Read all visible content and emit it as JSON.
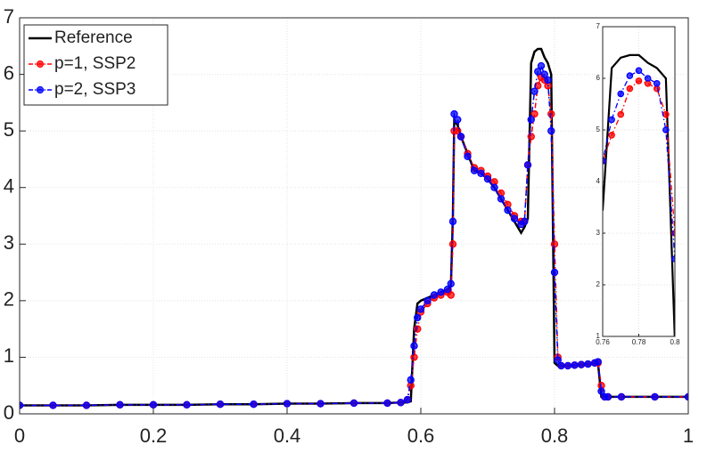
{
  "chart_data": {
    "type": "line",
    "x": [
      0,
      0.05,
      0.1,
      0.15,
      0.2,
      0.25,
      0.3,
      0.35,
      0.4,
      0.45,
      0.5,
      0.55,
      0.57,
      0.58,
      0.585,
      0.59,
      0.595,
      0.6,
      0.61,
      0.62,
      0.63,
      0.64,
      0.645,
      0.648,
      0.65,
      0.655,
      0.66,
      0.67,
      0.68,
      0.69,
      0.7,
      0.71,
      0.72,
      0.73,
      0.74,
      0.75,
      0.755,
      0.76,
      0.765,
      0.77,
      0.775,
      0.78,
      0.785,
      0.79,
      0.795,
      0.8,
      0.805,
      0.81,
      0.82,
      0.83,
      0.84,
      0.85,
      0.86,
      0.865,
      0.87,
      0.875,
      0.88,
      0.9,
      0.95,
      1.0
    ],
    "series": [
      {
        "name": "Reference",
        "color": "#000000",
        "marker": false,
        "values": [
          0.15,
          0.15,
          0.15,
          0.16,
          0.16,
          0.16,
          0.17,
          0.17,
          0.18,
          0.18,
          0.19,
          0.19,
          0.2,
          0.2,
          0.22,
          1.5,
          1.95,
          2.0,
          2.05,
          2.1,
          2.15,
          2.2,
          2.25,
          3.5,
          5.2,
          5.1,
          4.9,
          4.6,
          4.3,
          4.25,
          4.15,
          4.0,
          3.8,
          3.6,
          3.4,
          3.2,
          3.3,
          3.45,
          6.2,
          6.4,
          6.45,
          6.45,
          6.3,
          6.2,
          6.0,
          0.9,
          0.85,
          0.85,
          0.85,
          0.86,
          0.87,
          0.88,
          0.9,
          0.9,
          0.3,
          0.3,
          0.3,
          0.3,
          0.3,
          0.3
        ]
      },
      {
        "name": "p=1, SSP2",
        "color": "#ff0000",
        "marker": true,
        "values": [
          0.15,
          0.15,
          0.15,
          0.16,
          0.16,
          0.16,
          0.17,
          0.17,
          0.18,
          0.18,
          0.19,
          0.19,
          0.2,
          0.25,
          0.5,
          1.0,
          1.5,
          1.8,
          1.95,
          2.05,
          2.1,
          2.15,
          2.1,
          3.0,
          5.0,
          5.0,
          4.9,
          4.6,
          4.35,
          4.3,
          4.2,
          4.1,
          3.9,
          3.7,
          3.5,
          3.4,
          3.4,
          4.4,
          4.9,
          5.3,
          5.8,
          5.95,
          5.9,
          5.8,
          5.3,
          3.0,
          1.0,
          0.85,
          0.85,
          0.86,
          0.87,
          0.88,
          0.9,
          0.9,
          0.5,
          0.3,
          0.3,
          0.3,
          0.3,
          0.3
        ]
      },
      {
        "name": "p=2, SSP3",
        "color": "#0000ff",
        "marker": true,
        "values": [
          0.15,
          0.15,
          0.15,
          0.16,
          0.16,
          0.16,
          0.17,
          0.17,
          0.18,
          0.18,
          0.19,
          0.19,
          0.2,
          0.25,
          0.6,
          1.2,
          1.7,
          1.85,
          2.0,
          2.1,
          2.15,
          2.2,
          2.3,
          3.4,
          5.3,
          5.2,
          4.9,
          4.55,
          4.3,
          4.25,
          4.15,
          4.0,
          3.8,
          3.6,
          3.45,
          3.35,
          3.4,
          4.4,
          5.2,
          5.7,
          6.05,
          6.15,
          6.0,
          5.9,
          5.0,
          2.5,
          0.95,
          0.85,
          0.85,
          0.86,
          0.87,
          0.88,
          0.9,
          0.92,
          0.4,
          0.3,
          0.3,
          0.3,
          0.3,
          0.3
        ]
      }
    ],
    "xlim": [
      0,
      1
    ],
    "ylim": [
      0,
      7
    ],
    "xticks": [
      0,
      0.2,
      0.4,
      0.6,
      0.8,
      1
    ],
    "yticks": [
      0,
      1,
      2,
      3,
      4,
      5,
      6,
      7
    ],
    "grid": true,
    "legend": "top-left",
    "inset": {
      "xlim": [
        0.76,
        0.8
      ],
      "ylim": [
        1,
        7
      ],
      "xticks": [
        0.76,
        0.78,
        0.8
      ],
      "yticks": [
        1,
        2,
        3,
        4,
        5,
        6,
        7
      ]
    }
  }
}
